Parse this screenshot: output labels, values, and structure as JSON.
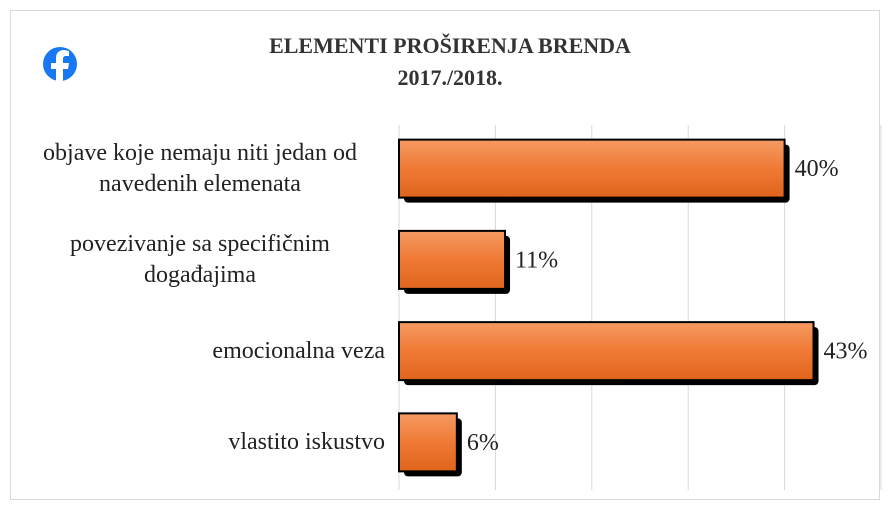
{
  "chart_data": {
    "type": "barh",
    "title": "ELEMENTI PROŠIRENJA BRENDA",
    "subtitle": "2017./2018.",
    "categories": [
      "objave koje nemaju niti jedan od navedenih elemenata",
      "povezivanje sa specifičnim događajima",
      "emocionalna veza",
      "vlastito iskustvo"
    ],
    "values": [
      40,
      11,
      43,
      6
    ],
    "value_labels": [
      "40%",
      "11%",
      "43%",
      "6%"
    ],
    "color": "#ef7a35",
    "xlim": [
      0,
      50
    ],
    "xticks": [
      0,
      10,
      20,
      30,
      40,
      50
    ],
    "grid": true
  }
}
